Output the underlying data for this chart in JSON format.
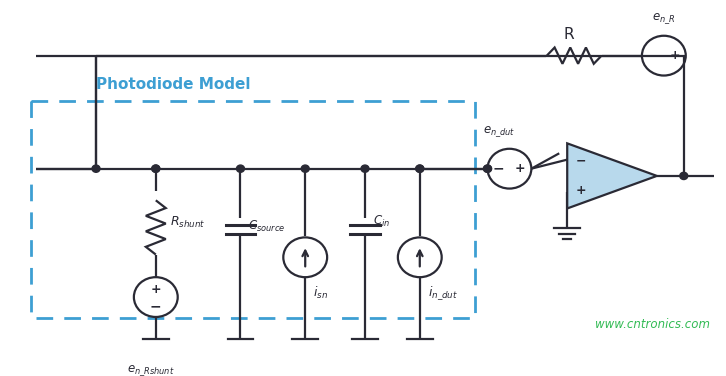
{
  "bg_color": "#ffffff",
  "line_color": "#2a2a35",
  "blue_color": "#3d9fd3",
  "light_blue": "#b8d9ec",
  "watermark": "www.cntronics.com",
  "watermark_color": "#33bb55",
  "dashed_label": "Photodiode Model"
}
